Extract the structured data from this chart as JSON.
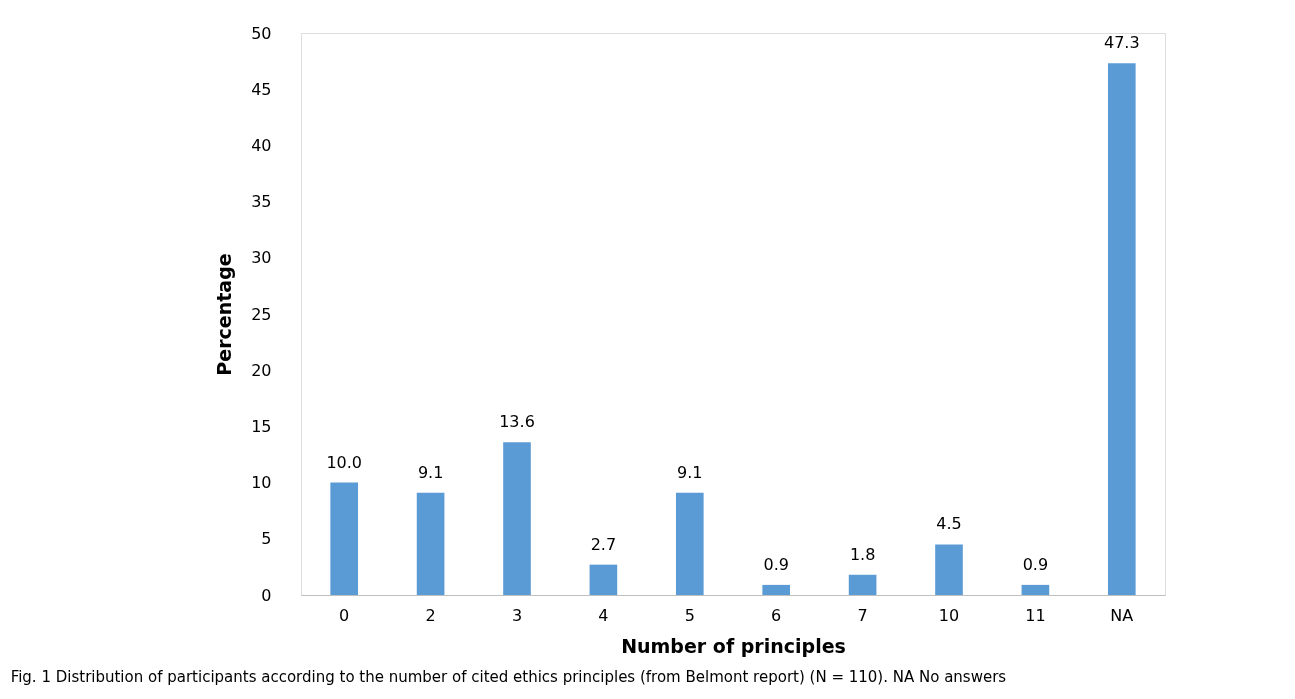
{
  "chart_data": {
    "type": "bar",
    "categories": [
      "0",
      "2",
      "3",
      "4",
      "5",
      "6",
      "7",
      "10",
      "11",
      "NA"
    ],
    "values": [
      10.0,
      9.1,
      13.6,
      2.7,
      9.1,
      0.9,
      1.8,
      4.5,
      0.9,
      47.3
    ],
    "color": "#5b9bd5",
    "xlabel": "Number of principles",
    "ylabel": "Percentage",
    "ylim": [
      0,
      50
    ],
    "yticks": [
      0,
      5,
      10,
      15,
      20,
      25,
      30,
      35,
      40,
      45,
      50
    ],
    "value_labels": [
      "10.0",
      "9.1",
      "13.6",
      "2.7",
      "9.1",
      "0.9",
      "1.8",
      "4.5",
      "0.9",
      "47.3"
    ],
    "annotations": [
      "Fig. 1  Distribution of participants according to the number of cited ethics principles (from Belmont report) (N = 110). NA No answers"
    ]
  }
}
